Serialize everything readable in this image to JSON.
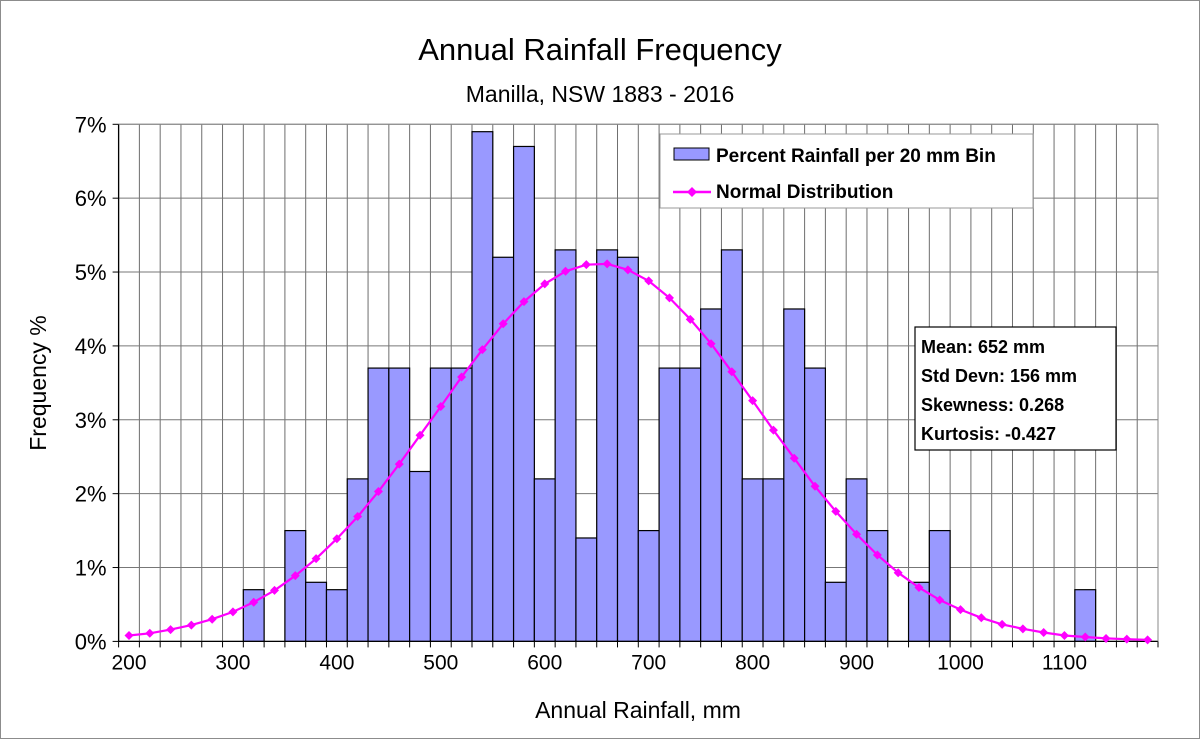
{
  "chart_data": {
    "type": "bar",
    "title": "Annual Rainfall Frequency",
    "subtitle": "Manilla, NSW 1883 - 2016",
    "xlabel": "Annual Rainfall, mm",
    "ylabel": "Frequency %",
    "xlim": [
      190,
      1190
    ],
    "ylim": [
      0,
      7
    ],
    "x_ticks": [
      200,
      300,
      400,
      500,
      600,
      700,
      800,
      900,
      1000,
      1100
    ],
    "y_ticks": [
      "0%",
      "1%",
      "2%",
      "3%",
      "4%",
      "5%",
      "6%",
      "7%"
    ],
    "grid": true,
    "legend_position": "top-right",
    "x": [
      200,
      220,
      240,
      260,
      280,
      300,
      320,
      340,
      360,
      380,
      400,
      420,
      440,
      460,
      480,
      500,
      520,
      540,
      560,
      580,
      600,
      620,
      640,
      660,
      680,
      700,
      720,
      740,
      760,
      780,
      800,
      820,
      840,
      860,
      880,
      900,
      920,
      940,
      960,
      980,
      1000,
      1020,
      1040,
      1060,
      1080,
      1100,
      1120,
      1140,
      1160,
      1180
    ],
    "series": [
      {
        "name": "Percent Rainfall per 20 mm Bin",
        "type": "bar",
        "color": "#9999ff",
        "values": [
          0,
          0,
          0,
          0,
          0,
          0,
          0.7,
          0,
          1.5,
          0.8,
          0.7,
          2.2,
          3.7,
          3.7,
          2.3,
          3.7,
          3.7,
          6.9,
          5.2,
          6.7,
          2.2,
          5.3,
          1.4,
          5.3,
          5.2,
          1.5,
          3.7,
          3.7,
          4.5,
          5.3,
          2.2,
          2.2,
          4.5,
          3.7,
          0.8,
          2.2,
          1.5,
          0,
          0.8,
          1.5,
          0,
          0,
          0,
          0,
          0,
          0,
          0.7,
          0,
          0,
          0
        ]
      },
      {
        "name": "Normal Distribution",
        "type": "line",
        "color": "#ff00ff",
        "values": [
          0.08,
          0.11,
          0.16,
          0.22,
          0.3,
          0.4,
          0.53,
          0.69,
          0.89,
          1.12,
          1.39,
          1.69,
          2.03,
          2.4,
          2.79,
          3.18,
          3.58,
          3.95,
          4.3,
          4.6,
          4.84,
          5.01,
          5.1,
          5.11,
          5.03,
          4.88,
          4.65,
          4.36,
          4.03,
          3.65,
          3.26,
          2.86,
          2.48,
          2.1,
          1.76,
          1.45,
          1.17,
          0.93,
          0.73,
          0.56,
          0.43,
          0.32,
          0.23,
          0.17,
          0.12,
          0.08,
          0.06,
          0.04,
          0.03,
          0.02
        ]
      }
    ],
    "stats": [
      "Mean: 652 mm",
      "Std Devn: 156 mm",
      "Skewness: 0.268",
      "Kurtosis: -0.427"
    ]
  }
}
